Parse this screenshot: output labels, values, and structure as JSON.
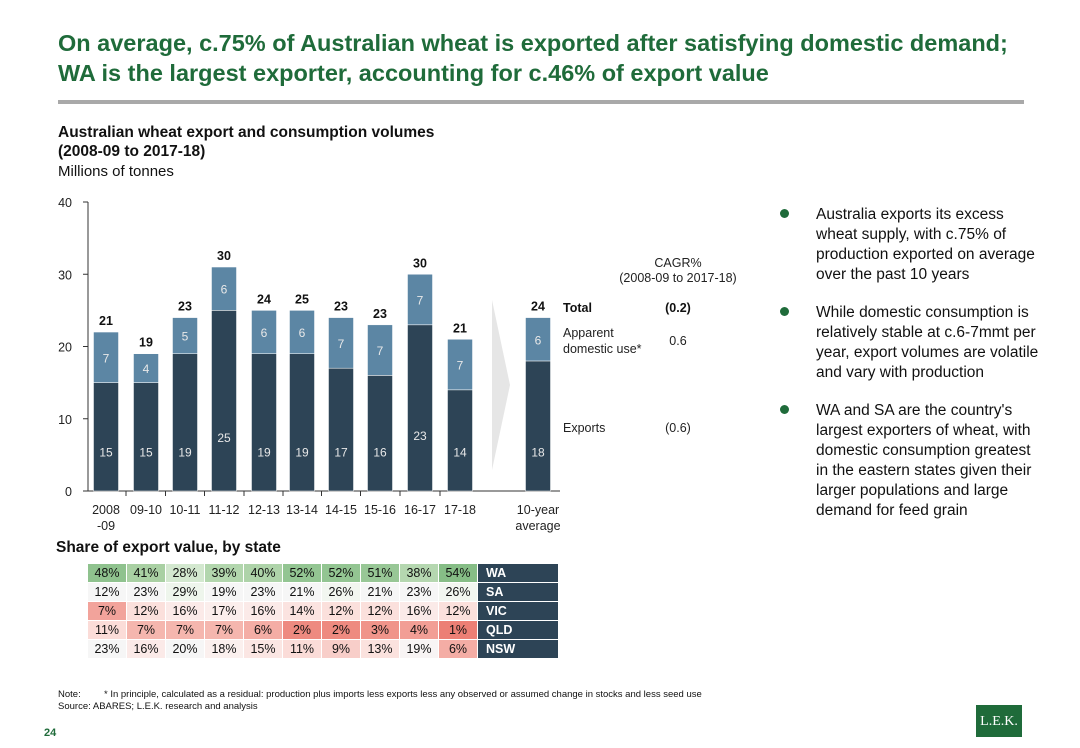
{
  "header": {
    "title": "On average, c.75% of Australian wheat is exported after satisfying domestic demand; WA is the largest exporter, accounting for c.46% of export value"
  },
  "chart_heading": {
    "title": "Australian wheat export and consumption volumes (2008-09 to 2017-18)",
    "unit": "Millions of tonnes"
  },
  "chart_data": {
    "type": "bar",
    "stacked": true,
    "categories": [
      "2008 -09",
      "09-10",
      "10-11",
      "11-12",
      "12-13",
      "13-14",
      "14-15",
      "15-16",
      "16-17",
      "17-18",
      "10-year average"
    ],
    "series": [
      {
        "name": "Exports",
        "values": [
          15,
          15,
          19,
          25,
          19,
          19,
          17,
          16,
          23,
          14,
          18
        ]
      },
      {
        "name": "Apparent domestic use*",
        "values": [
          7,
          4,
          5,
          6,
          6,
          6,
          7,
          7,
          7,
          7,
          6
        ]
      }
    ],
    "totals": [
      21,
      19,
      23,
      30,
      24,
      25,
      23,
      23,
      30,
      21,
      24
    ],
    "ylim": [
      0,
      40
    ],
    "yticks": [
      0,
      10,
      20,
      30,
      40
    ],
    "cagr_header": [
      "CAGR%",
      "(2008-09 to 2017-18)"
    ],
    "cagr": {
      "total": "(0.2)",
      "domestic": "0.6",
      "exports": "(0.6)"
    },
    "legend_total": "Total",
    "legend_domestic": [
      "Apparent",
      "domestic use*"
    ],
    "legend_exports": "Exports",
    "colors": {
      "exports": "#2d4456",
      "domestic": "#5c86a4",
      "arrow": "#e6e6e6"
    }
  },
  "bullets": [
    "Australia exports its excess wheat supply, with c.75% of production exported on average over the past 10 years",
    "While domestic consumption is relatively stable at c.6-7mmt per year, export volumes are volatile and vary with production",
    "WA and SA are the country's largest exporters of wheat, with domestic consumption greatest in the eastern states given their larger populations and large demand for feed grain"
  ],
  "share_table": {
    "title": "Share of export value, by state",
    "rows": [
      {
        "state": "WA",
        "values": [
          "48%",
          "41%",
          "28%",
          "39%",
          "40%",
          "52%",
          "52%",
          "51%",
          "38%",
          "54%"
        ],
        "bg": [
          "#8fc28e",
          "#a9d0a3",
          "#d3e8cf",
          "#b2d6ad",
          "#aed3a9",
          "#93c592",
          "#93c592",
          "#98c796",
          "#b5d7b0",
          "#86bd86"
        ]
      },
      {
        "state": "SA",
        "values": [
          "12%",
          "23%",
          "29%",
          "19%",
          "23%",
          "21%",
          "26%",
          "21%",
          "23%",
          "26%"
        ],
        "bg": [
          "#f6f6f6",
          "#f6f6f6",
          "#eef5ec",
          "#f6f6f6",
          "#f6f6f6",
          "#f6f6f6",
          "#f2f6f0",
          "#f6f6f6",
          "#f6f6f6",
          "#f2f6f0"
        ]
      },
      {
        "state": "VIC",
        "values": [
          "7%",
          "12%",
          "16%",
          "17%",
          "16%",
          "14%",
          "12%",
          "12%",
          "16%",
          "12%"
        ],
        "bg": [
          "#f2a39b",
          "#fbe0dc",
          "#fbeae8",
          "#fbeeec",
          "#fbeae8",
          "#fbe3e0",
          "#fbe0dc",
          "#fbe0dc",
          "#fbeae8",
          "#fbe0dc"
        ]
      },
      {
        "state": "QLD",
        "values": [
          "11%",
          "7%",
          "7%",
          "7%",
          "6%",
          "2%",
          "2%",
          "3%",
          "4%",
          "1%"
        ],
        "bg": [
          "#fbdcd8",
          "#f5b6ae",
          "#f5b6ae",
          "#f5b6ae",
          "#f4ada5",
          "#ee8a80",
          "#ee8a80",
          "#f0948a",
          "#f29e95",
          "#ec7f75"
        ]
      },
      {
        "state": "NSW",
        "values": [
          "23%",
          "16%",
          "20%",
          "18%",
          "15%",
          "11%",
          "9%",
          "13%",
          "19%",
          "6%"
        ],
        "bg": [
          "#f6f6f6",
          "#fbeae8",
          "#f6f6f6",
          "#fbf0ee",
          "#fbe6e3",
          "#fbdcd8",
          "#f8cec9",
          "#fbe2de",
          "#f8f4f4",
          "#f4ada5"
        ]
      }
    ]
  },
  "note": {
    "note_label": "Note:",
    "note_text": "* In principle, calculated as a residual: production plus imports less exports less any observed or assumed change in stocks and less seed use",
    "source_label": "Source:",
    "source_text": "ABARES; L.E.K. research and analysis"
  },
  "page_number": "24",
  "logo_text": "L.E.K."
}
